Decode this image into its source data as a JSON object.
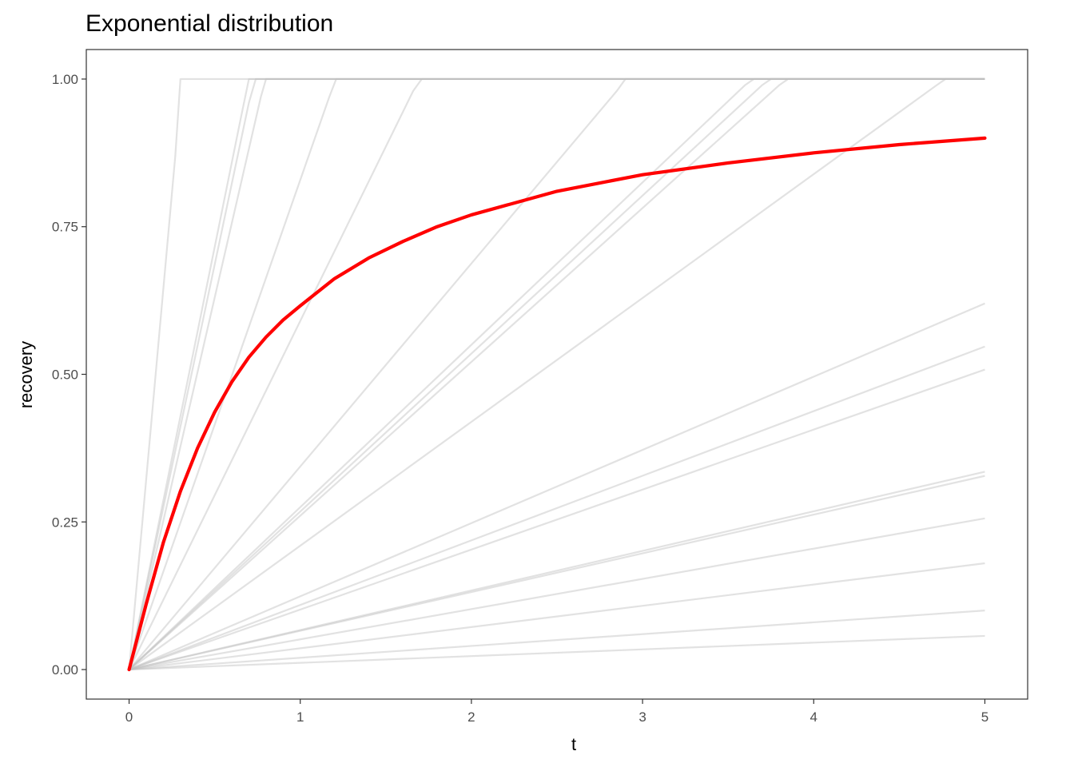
{
  "chart_data": {
    "type": "line",
    "title": "Exponential distribution",
    "xlabel": "t",
    "ylabel": "recovery",
    "xlim": [
      -0.25,
      5.25
    ],
    "ylim": [
      -0.05,
      1.05
    ],
    "x_ticks": [
      0,
      1,
      2,
      3,
      4,
      5
    ],
    "x_tick_labels": [
      "0",
      "1",
      "2",
      "3",
      "4",
      "5"
    ],
    "y_ticks": [
      0,
      0.25,
      0.5,
      0.75,
      1
    ],
    "y_tick_labels": [
      "0.00",
      "0.25",
      "0.50",
      "0.75",
      "1.00"
    ],
    "grid": false,
    "legend": "none",
    "simulation_lines": [
      {
        "x": [
          0,
          0.27,
          0.3,
          5
        ],
        "y": [
          0,
          0.87,
          1,
          1
        ]
      },
      {
        "x": [
          0,
          0.65,
          0.7,
          5
        ],
        "y": [
          0,
          0.93,
          1,
          1
        ]
      },
      {
        "x": [
          0,
          0.7,
          0.74,
          5
        ],
        "y": [
          0,
          0.96,
          1,
          1
        ]
      },
      {
        "x": [
          0,
          0.77,
          0.8,
          5
        ],
        "y": [
          0,
          0.97,
          1,
          1
        ]
      },
      {
        "x": [
          0,
          1.17,
          1.21,
          5
        ],
        "y": [
          0,
          0.97,
          1,
          1
        ]
      },
      {
        "x": [
          0,
          1.66,
          1.71,
          5
        ],
        "y": [
          0,
          0.98,
          1,
          1
        ]
      },
      {
        "x": [
          0,
          2.85,
          2.9,
          5
        ],
        "y": [
          0,
          0.98,
          1,
          1
        ]
      },
      {
        "x": [
          0,
          3.6,
          3.65,
          5
        ],
        "y": [
          0,
          0.99,
          1,
          1
        ]
      },
      {
        "x": [
          0,
          3.7,
          3.75,
          5
        ],
        "y": [
          0,
          0.99,
          1,
          1
        ]
      },
      {
        "x": [
          0,
          3.8,
          3.85,
          5
        ],
        "y": [
          0,
          0.99,
          1,
          1
        ]
      },
      {
        "x": [
          0,
          4.72,
          4.77,
          5
        ],
        "y": [
          0,
          0.99,
          1,
          1
        ]
      },
      {
        "x": [
          0,
          5
        ],
        "y": [
          0,
          0.62
        ]
      },
      {
        "x": [
          0,
          5
        ],
        "y": [
          0,
          0.547
        ]
      },
      {
        "x": [
          0,
          5
        ],
        "y": [
          0,
          0.508
        ]
      },
      {
        "x": [
          0,
          5
        ],
        "y": [
          0,
          0.335
        ]
      },
      {
        "x": [
          0,
          5
        ],
        "y": [
          0,
          0.328
        ]
      },
      {
        "x": [
          0,
          5
        ],
        "y": [
          0,
          0.256
        ]
      },
      {
        "x": [
          0,
          5
        ],
        "y": [
          0,
          0.18
        ]
      },
      {
        "x": [
          0,
          5
        ],
        "y": [
          0,
          0.1
        ]
      },
      {
        "x": [
          0,
          5
        ],
        "y": [
          0,
          0.057
        ]
      }
    ],
    "mean_curve": {
      "x": [
        0,
        0.1,
        0.2,
        0.3,
        0.4,
        0.5,
        0.6,
        0.7,
        0.8,
        0.9,
        1.0,
        1.2,
        1.4,
        1.6,
        1.8,
        2.0,
        2.5,
        3.0,
        3.5,
        4.0,
        4.5,
        5.0
      ],
      "y": [
        0,
        0.111,
        0.215,
        0.302,
        0.375,
        0.436,
        0.487,
        0.529,
        0.563,
        0.592,
        0.616,
        0.662,
        0.697,
        0.725,
        0.75,
        0.77,
        0.81,
        0.838,
        0.858,
        0.875,
        0.889,
        0.9
      ]
    },
    "colors": {
      "simulation_line": "#bfbfbf",
      "mean_curve": "#ff0000",
      "panel_border": "#333333",
      "axis_text": "#4d4d4d"
    }
  }
}
